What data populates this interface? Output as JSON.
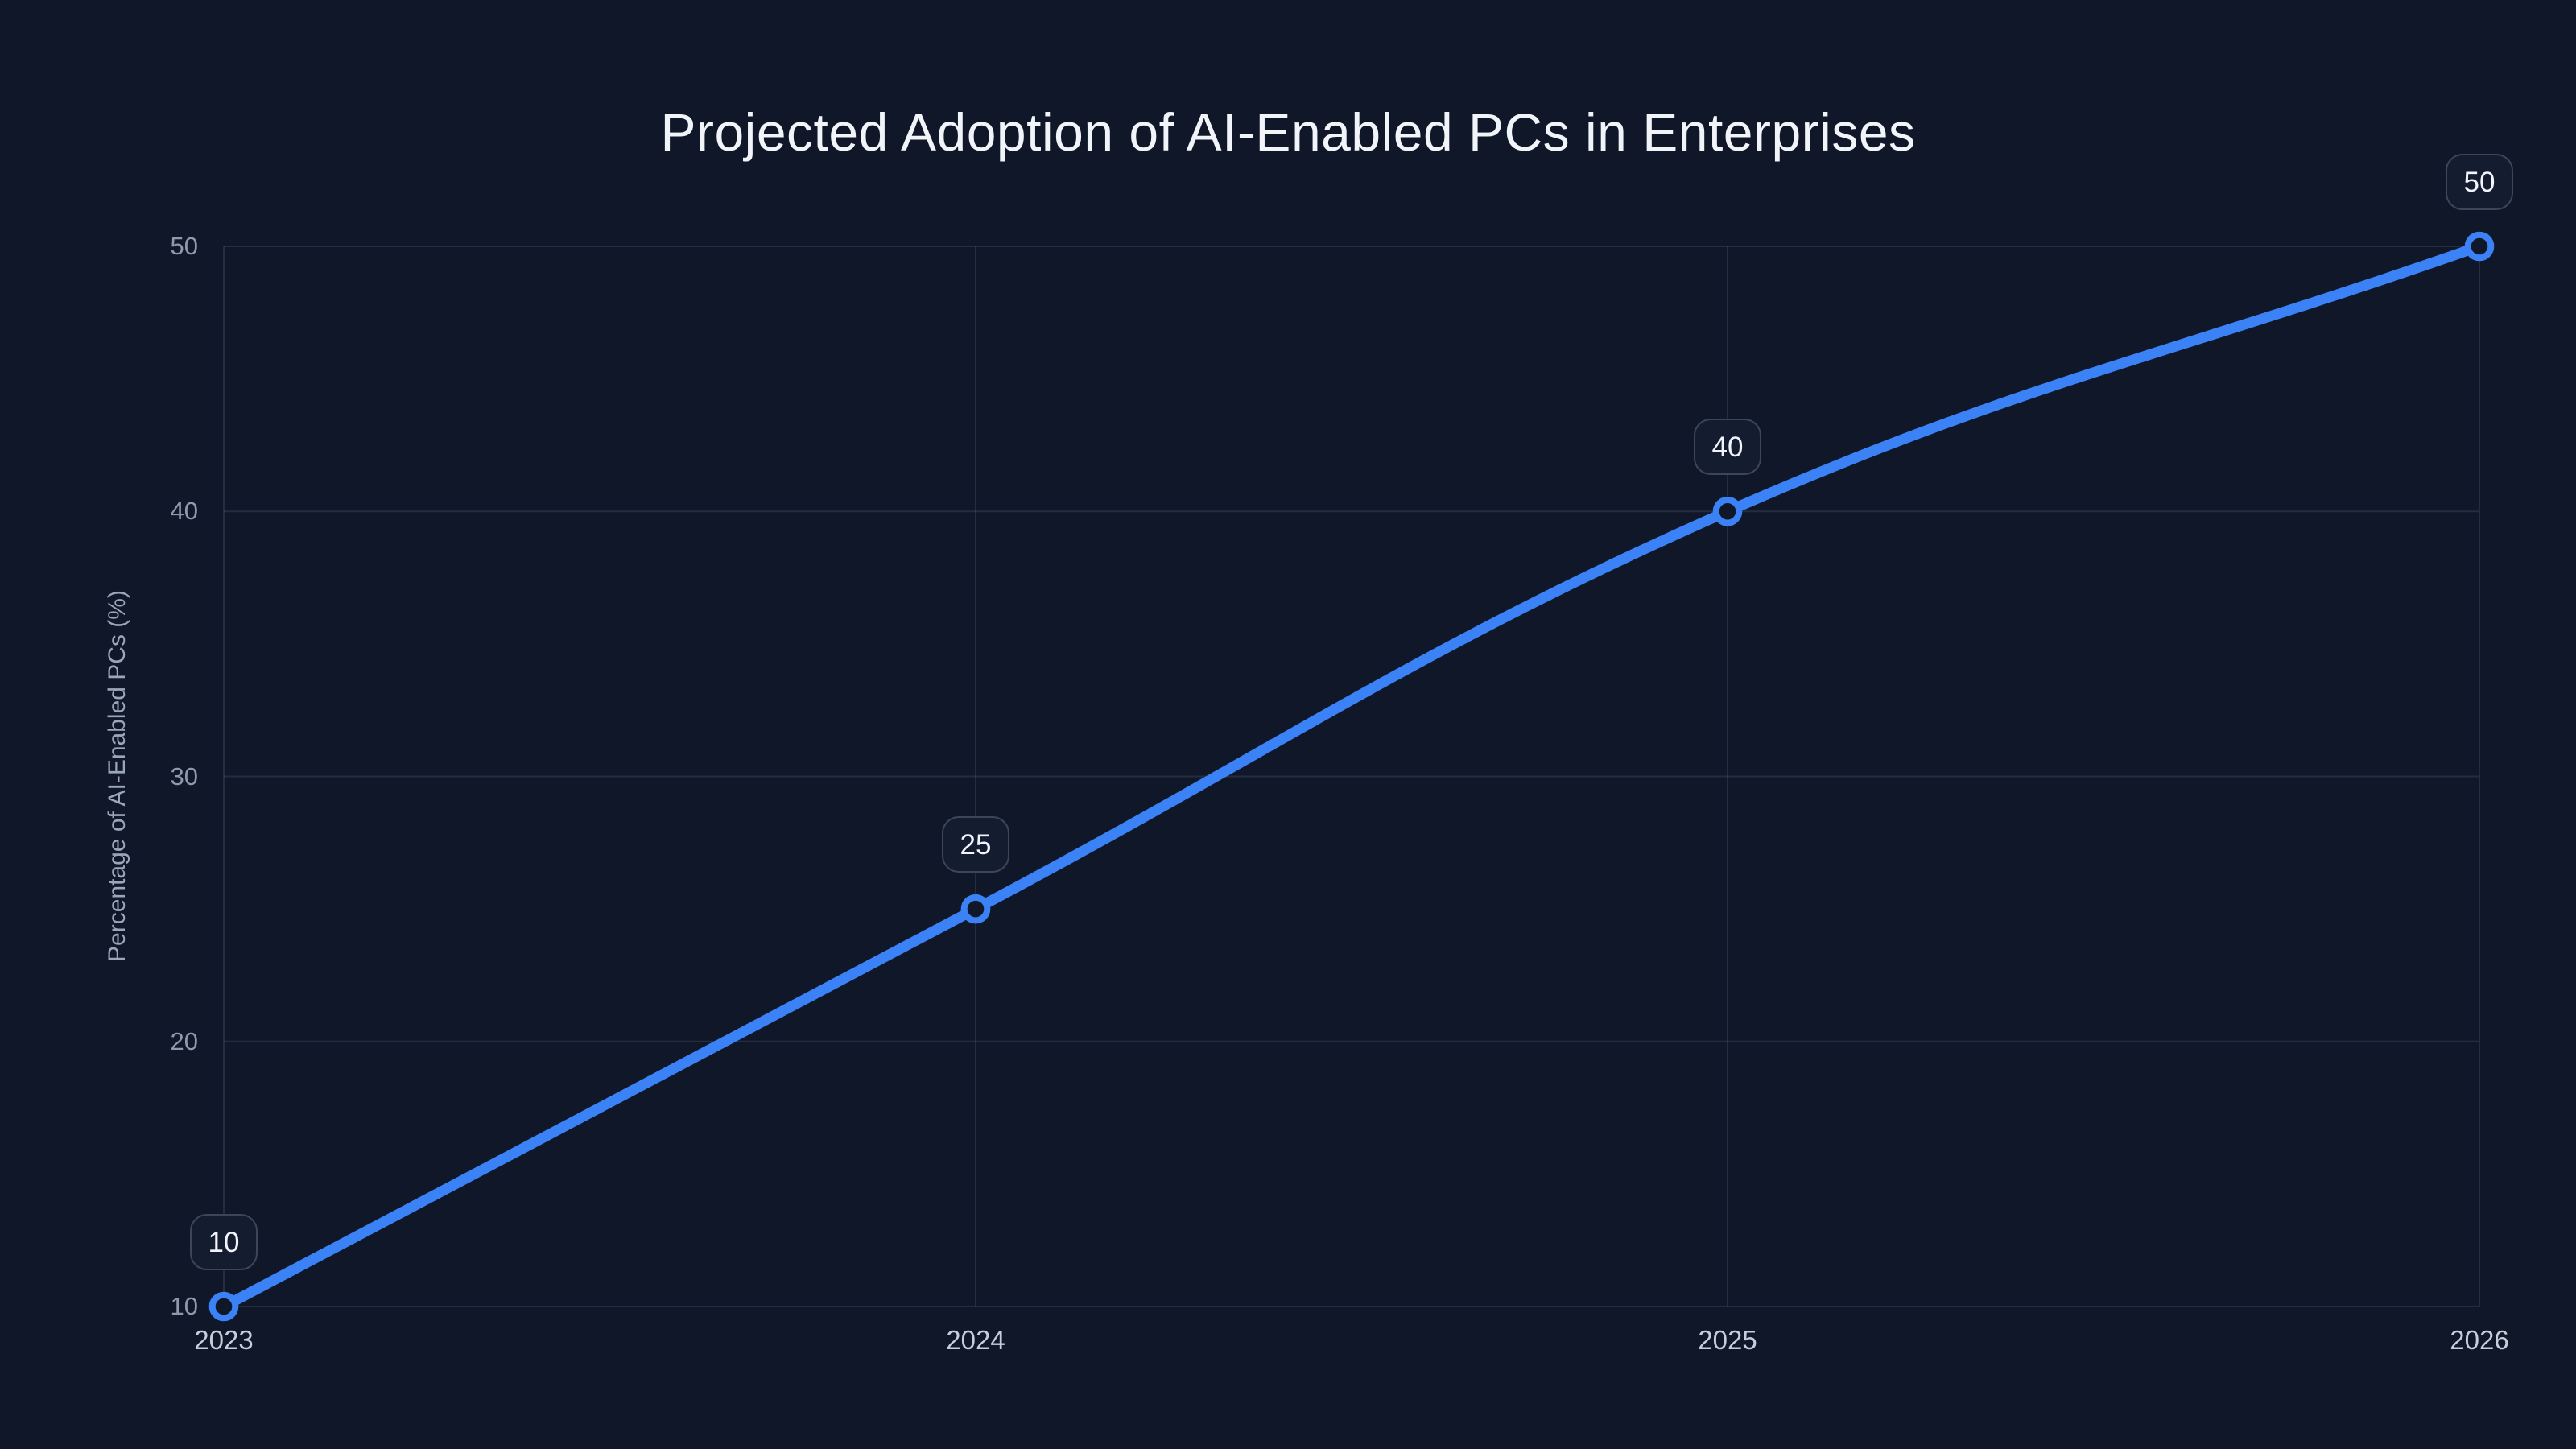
{
  "chart_data": {
    "type": "line",
    "title": "Projected Adoption of AI-Enabled PCs in Enterprises",
    "xlabel": "",
    "ylabel": "Percentage of AI-Enabled PCs (%)",
    "categories": [
      "2023",
      "2024",
      "2025",
      "2026"
    ],
    "values": [
      10,
      25,
      40,
      50
    ],
    "point_labels": [
      "10",
      "25",
      "40",
      "50"
    ],
    "yticks": [
      10,
      20,
      30,
      40,
      50
    ],
    "ylim": [
      10,
      50
    ],
    "grid": "on",
    "legend": "none",
    "line_style": "smooth",
    "marker_style": "open-circle",
    "colors": {
      "background": "#0f1728",
      "line": "#3b82f6",
      "marker_fill": "#0f1728",
      "grid": "rgba(148,163,184,0.16)",
      "title_text": "#f1f4f9",
      "y_tick_text": "#8e99ac",
      "x_tick_text": "#c6ceda",
      "axis_title_text": "#9aa6b9",
      "badge_background": "#141c30",
      "badge_border": "#3c4659",
      "badge_text": "#f1f4fa"
    }
  }
}
